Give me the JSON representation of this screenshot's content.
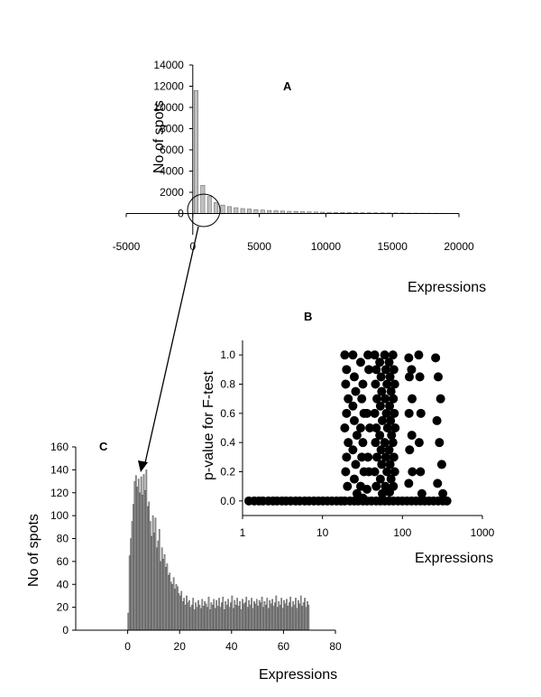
{
  "chart_data": [
    {
      "panel": "A",
      "type": "bar",
      "panel_label": "A",
      "xlabel": "Expressions",
      "ylabel": "No of spots",
      "xlim": [
        -5000,
        20000
      ],
      "ylim": [
        -2000,
        14000
      ],
      "xticks": [
        -5000,
        0,
        5000,
        10000,
        15000,
        20000
      ],
      "yticks": [
        0,
        2000,
        4000,
        6000,
        8000,
        10000,
        12000,
        14000
      ],
      "bar_color": "#c0c0c0",
      "x": [
        250,
        750,
        1250,
        1750,
        2250,
        2750,
        3250,
        3750,
        4250,
        4750,
        5250,
        5750,
        6250,
        6750,
        7250,
        7750,
        8250,
        8750,
        9250,
        9750,
        10250,
        10750,
        11250,
        11750,
        12250,
        12750,
        13250,
        13750,
        14250,
        14750,
        15250,
        15750,
        16250,
        16750,
        17250,
        17750,
        18250,
        18750,
        19250,
        19750
      ],
      "values": [
        11600,
        2650,
        1600,
        1050,
        800,
        650,
        550,
        470,
        420,
        370,
        330,
        290,
        260,
        230,
        210,
        190,
        170,
        155,
        140,
        128,
        118,
        108,
        100,
        92,
        85,
        78,
        72,
        66,
        61,
        56,
        52,
        48,
        44,
        40,
        37,
        34,
        31,
        28,
        26,
        24
      ],
      "annotation": "circle around origin with arrow pointing to panel C"
    },
    {
      "panel": "B",
      "type": "scatter",
      "panel_label": "B",
      "xlabel": "Expressions",
      "ylabel": "p-value for F-test",
      "xscale": "log",
      "xlim": [
        1,
        1000
      ],
      "ylim": [
        -0.1,
        1.1
      ],
      "xticks": [
        1,
        10,
        100,
        1000
      ],
      "yticks": [
        0.0,
        0.2,
        0.4,
        0.6,
        0.8,
        1.0
      ],
      "marker_color": "#000000",
      "points": [
        [
          1.2,
          0
        ],
        [
          1.4,
          0
        ],
        [
          1.6,
          0
        ],
        [
          1.8,
          0
        ],
        [
          2.1,
          0
        ],
        [
          2.4,
          0
        ],
        [
          2.7,
          0
        ],
        [
          3.1,
          0
        ],
        [
          3.5,
          0
        ],
        [
          4.0,
          0
        ],
        [
          4.6,
          0
        ],
        [
          5.2,
          0
        ],
        [
          6.0,
          0
        ],
        [
          6.8,
          0
        ],
        [
          7.8,
          0
        ],
        [
          8.9,
          0
        ],
        [
          10.1,
          0
        ],
        [
          11.5,
          0
        ],
        [
          13.1,
          0
        ],
        [
          15.0,
          0
        ],
        [
          17,
          0
        ],
        [
          19,
          0
        ],
        [
          22,
          0
        ],
        [
          25,
          0
        ],
        [
          28,
          0
        ],
        [
          32,
          0
        ],
        [
          36,
          0
        ],
        [
          41,
          0
        ],
        [
          47,
          0
        ],
        [
          53,
          0
        ],
        [
          60,
          0
        ],
        [
          68,
          0
        ],
        [
          77,
          0
        ],
        [
          88,
          0
        ],
        [
          100,
          0
        ],
        [
          114,
          0
        ],
        [
          130,
          0
        ],
        [
          148,
          0
        ],
        [
          168,
          0
        ],
        [
          190,
          0
        ],
        [
          215,
          0
        ],
        [
          245,
          0
        ],
        [
          280,
          0
        ],
        [
          320,
          0
        ],
        [
          360,
          0
        ],
        [
          19,
          1.0
        ],
        [
          20,
          0.9
        ],
        [
          19.5,
          0.8
        ],
        [
          21,
          0.7
        ],
        [
          20,
          0.6
        ],
        [
          19,
          0.5
        ],
        [
          21,
          0.4
        ],
        [
          20,
          0.3
        ],
        [
          19.5,
          0.2
        ],
        [
          20.5,
          0.1
        ],
        [
          24,
          1.0
        ],
        [
          25,
          0.85
        ],
        [
          26,
          0.75
        ],
        [
          24,
          0.65
        ],
        [
          25,
          0.55
        ],
        [
          27,
          0.45
        ],
        [
          24,
          0.35
        ],
        [
          26,
          0.25
        ],
        [
          25,
          0.15
        ],
        [
          27,
          0.05
        ],
        [
          30,
          0.95
        ],
        [
          32,
          0.8
        ],
        [
          31,
          0.7
        ],
        [
          33,
          0.6
        ],
        [
          30,
          0.5
        ],
        [
          32,
          0.4
        ],
        [
          31,
          0.3
        ],
        [
          33,
          0.2
        ],
        [
          30,
          0.1
        ],
        [
          32,
          0.02
        ],
        [
          37,
          1.0
        ],
        [
          38,
          0.9
        ],
        [
          36,
          0.6
        ],
        [
          39,
          0.5
        ],
        [
          37,
          0.3
        ],
        [
          38,
          0.2
        ],
        [
          36,
          0.08
        ],
        [
          45,
          1.0
        ],
        [
          47,
          0.9
        ],
        [
          46,
          0.8
        ],
        [
          48,
          0.7
        ],
        [
          45,
          0.6
        ],
        [
          47,
          0.5
        ],
        [
          46,
          0.4
        ],
        [
          48,
          0.3
        ],
        [
          45,
          0.2
        ],
        [
          47,
          0.1
        ],
        [
          52,
          0.95
        ],
        [
          54,
          0.85
        ],
        [
          55,
          0.75
        ],
        [
          53,
          0.65
        ],
        [
          56,
          0.55
        ],
        [
          52,
          0.45
        ],
        [
          54,
          0.35
        ],
        [
          55,
          0.25
        ],
        [
          53,
          0.15
        ],
        [
          56,
          0.05
        ],
        [
          60,
          1.0
        ],
        [
          62,
          0.9
        ],
        [
          64,
          0.8
        ],
        [
          61,
          0.7
        ],
        [
          63,
          0.6
        ],
        [
          65,
          0.5
        ],
        [
          60,
          0.4
        ],
        [
          62,
          0.3
        ],
        [
          64,
          0.2
        ],
        [
          61,
          0.1
        ],
        [
          68,
          0.95
        ],
        [
          70,
          0.85
        ],
        [
          72,
          0.75
        ],
        [
          69,
          0.65
        ],
        [
          71,
          0.55
        ],
        [
          73,
          0.45
        ],
        [
          68,
          0.35
        ],
        [
          70,
          0.25
        ],
        [
          72,
          0.15
        ],
        [
          69,
          0.06
        ],
        [
          76,
          1.0
        ],
        [
          78,
          0.9
        ],
        [
          80,
          0.8
        ],
        [
          77,
          0.7
        ],
        [
          79,
          0.6
        ],
        [
          81,
          0.5
        ],
        [
          76,
          0.4
        ],
        [
          78,
          0.3
        ],
        [
          80,
          0.2
        ],
        [
          77,
          0.1
        ],
        [
          120,
          0.98
        ],
        [
          122,
          0.85
        ],
        [
          121,
          0.6
        ],
        [
          123,
          0.35
        ],
        [
          120,
          0.12
        ],
        [
          130,
          0.9
        ],
        [
          132,
          0.7
        ],
        [
          131,
          0.45
        ],
        [
          133,
          0.2
        ],
        [
          160,
          1.0
        ],
        [
          165,
          0.85
        ],
        [
          170,
          0.6
        ],
        [
          162,
          0.4
        ],
        [
          168,
          0.2
        ],
        [
          175,
          0.05
        ],
        [
          260,
          0.98
        ],
        [
          280,
          0.85
        ],
        [
          300,
          0.7
        ],
        [
          270,
          0.55
        ],
        [
          290,
          0.4
        ],
        [
          310,
          0.25
        ],
        [
          275,
          0.12
        ],
        [
          320,
          0.05
        ]
      ]
    },
    {
      "panel": "C",
      "type": "bar",
      "panel_label": "C",
      "xlabel": "Expressions",
      "ylabel": "No of spots",
      "xlim": [
        -20,
        80
      ],
      "ylim": [
        0,
        160
      ],
      "xticks": [
        0,
        20,
        40,
        60,
        80
      ],
      "yticks": [
        0,
        20,
        40,
        60,
        80,
        100,
        120,
        140,
        160
      ],
      "bar_color": "#999999",
      "bin_width": 0.5,
      "x_start": 0,
      "values": [
        15,
        65,
        80,
        95,
        110,
        130,
        135,
        125,
        132,
        120,
        134,
        118,
        136,
        122,
        140,
        108,
        112,
        95,
        82,
        100,
        85,
        98,
        72,
        78,
        88,
        60,
        72,
        62,
        66,
        55,
        58,
        48,
        50,
        42,
        40,
        46,
        36,
        40,
        38,
        32,
        30,
        34,
        25,
        28,
        22,
        30,
        24,
        26,
        20,
        22,
        28,
        18,
        24,
        20,
        26,
        22,
        19,
        27,
        21,
        25,
        23,
        20,
        29,
        18,
        24,
        22,
        27,
        19,
        26,
        21,
        28,
        20,
        24,
        29,
        18,
        25,
        22,
        27,
        20,
        24,
        30,
        19,
        26,
        22,
        28,
        21,
        25,
        18,
        27,
        23,
        24,
        29,
        20,
        26,
        22,
        28,
        19,
        25,
        23,
        27,
        21,
        26,
        24,
        29,
        20,
        25,
        22,
        28,
        19,
        26,
        23,
        27,
        21,
        24,
        30,
        20,
        25,
        22,
        28,
        19,
        26,
        23,
        27,
        21,
        24,
        29,
        20,
        25,
        22,
        28,
        19,
        26,
        23,
        30,
        21,
        24,
        28,
        20,
        25,
        22
      ]
    }
  ]
}
